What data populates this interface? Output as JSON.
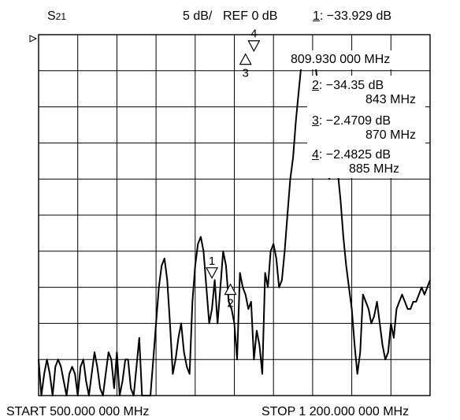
{
  "header": {
    "param": "S",
    "param_sub": "21",
    "scale": "5 dB/",
    "ref": "REF 0 dB",
    "active_marker_num": "1",
    "active_marker_value": ": −33.929 dB"
  },
  "footer": {
    "start": "START 500.000 000 MHz",
    "stop": "STOP 1 200.000 000 MHz"
  },
  "marker_readouts": {
    "active_freq": "809.930 000 MHz",
    "m2_num": "2",
    "m2_value": ": −34.35  dB",
    "m2_freq": "843 MHz",
    "m3_num": "3",
    "m3_value": ": −2.4709 dB",
    "m3_freq": "870 MHz",
    "m4_num": "4",
    "m4_value": ": −2.4825 dB",
    "m4_freq": "885 MHz"
  },
  "chart_data": {
    "type": "line",
    "xlabel": "",
    "ylabel": "",
    "xlim": [
      500,
      1200
    ],
    "ylim": [
      -50,
      0
    ],
    "grid": true,
    "markers": [
      {
        "label": "1",
        "x": 809.93,
        "y": -33.929,
        "direction": "down"
      },
      {
        "label": "2",
        "x": 843,
        "y": -34.35,
        "direction": "up"
      },
      {
        "label": "3",
        "x": 870,
        "y": -2.4709,
        "direction": "up"
      },
      {
        "label": "4",
        "x": 885,
        "y": -2.4825,
        "direction": "down"
      }
    ],
    "series": [
      {
        "x": [
          500,
          505,
          510,
          515,
          520,
          525,
          530,
          535,
          540,
          545,
          550,
          555,
          560,
          565,
          570,
          575,
          580,
          585,
          590,
          595,
          600,
          605,
          610,
          615,
          620,
          625,
          630,
          635,
          640,
          645,
          650,
          655,
          660,
          665,
          670,
          675,
          680,
          685,
          690,
          695,
          700,
          705,
          710,
          715,
          720,
          725,
          730,
          735,
          740,
          745,
          750,
          755,
          760,
          765,
          770,
          775,
          780,
          785,
          790,
          795,
          800,
          805,
          810,
          815,
          820,
          825,
          830,
          835,
          840,
          845,
          850,
          855,
          860,
          865,
          870,
          875,
          880,
          885,
          890,
          895,
          900,
          905,
          910,
          915,
          920,
          925,
          930,
          935,
          940,
          945,
          950,
          955,
          960,
          965,
          970,
          975,
          980,
          985,
          990,
          995,
          1000,
          1005,
          1010,
          1015,
          1020,
          1025,
          1030,
          1035,
          1040,
          1045,
          1050,
          1055,
          1060,
          1065,
          1070,
          1075,
          1080,
          1085,
          1090,
          1095,
          1100,
          1105,
          1110,
          1115,
          1120,
          1125,
          1130,
          1135,
          1140,
          1145,
          1150,
          1155,
          1160,
          1165,
          1170,
          1175,
          1180,
          1185,
          1190,
          1195,
          1200
        ],
        "y": [
          -45,
          -50,
          -47,
          -45,
          -47,
          -50,
          -46,
          -45,
          -46,
          -48,
          -50,
          -47,
          -46,
          -47,
          -50,
          -46,
          -45,
          -48,
          -50,
          -47,
          -44,
          -46,
          -49,
          -50,
          -47,
          -44,
          -45,
          -49,
          -44,
          -50,
          -48,
          -45,
          -45,
          -49,
          -50,
          -46,
          -42,
          -50,
          -50,
          -50,
          -50,
          -45,
          -40,
          -35,
          -32,
          -31,
          -34,
          -40,
          -47,
          -45,
          -42,
          -40,
          -44,
          -46,
          -47,
          -37,
          -32,
          -29,
          -28,
          -30,
          -35,
          -40,
          -38,
          -34,
          -40,
          -35,
          -30,
          -32,
          -37,
          -38,
          -40,
          -45,
          -33,
          -35,
          -36,
          -38,
          -37,
          -45,
          -41,
          -43,
          -47,
          -33,
          -35,
          -30,
          -29,
          -31,
          -35,
          -34,
          -30,
          -25,
          -20,
          -17,
          -12,
          -8,
          -4,
          -3,
          -2.5,
          -2.5,
          -3,
          -4,
          -8,
          -12,
          -17,
          -19,
          -20,
          -18,
          -17,
          -19,
          -23,
          -28,
          -32,
          -35,
          -38,
          -43,
          -47,
          -44,
          -36,
          -37,
          -38,
          -40,
          -39,
          -37,
          -40,
          -43,
          -45,
          -44,
          -40,
          -42,
          -38,
          -37,
          -36,
          -37,
          -38,
          -38,
          -37,
          -37,
          -36,
          -35,
          -36,
          -35,
          -34
        ]
      }
    ]
  }
}
